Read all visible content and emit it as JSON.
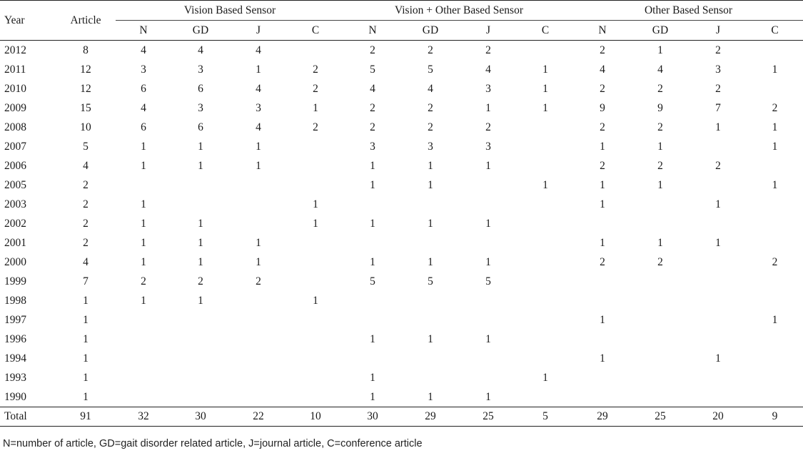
{
  "table": {
    "col_year": "Year",
    "col_article": "Article",
    "groups": [
      "Vision Based Sensor",
      "Vision + Other Based Sensor",
      "Other Based Sensor"
    ],
    "sub_columns": [
      "N",
      "GD",
      "J",
      "C"
    ],
    "rows": [
      [
        "2012",
        "8",
        "4",
        "4",
        "4",
        "",
        "2",
        "2",
        "2",
        "",
        "2",
        "1",
        "2",
        ""
      ],
      [
        "2011",
        "12",
        "3",
        "3",
        "1",
        "2",
        "5",
        "5",
        "4",
        "1",
        "4",
        "4",
        "3",
        "1"
      ],
      [
        "2010",
        "12",
        "6",
        "6",
        "4",
        "2",
        "4",
        "4",
        "3",
        "1",
        "2",
        "2",
        "2",
        ""
      ],
      [
        "2009",
        "15",
        "4",
        "3",
        "3",
        "1",
        "2",
        "2",
        "1",
        "1",
        "9",
        "9",
        "7",
        "2"
      ],
      [
        "2008",
        "10",
        "6",
        "6",
        "4",
        "2",
        "2",
        "2",
        "2",
        "",
        "2",
        "2",
        "1",
        "1"
      ],
      [
        "2007",
        "5",
        "1",
        "1",
        "1",
        "",
        "3",
        "3",
        "3",
        "",
        "1",
        "1",
        "",
        "1"
      ],
      [
        "2006",
        "4",
        "1",
        "1",
        "1",
        "",
        "1",
        "1",
        "1",
        "",
        "2",
        "2",
        "2",
        ""
      ],
      [
        "2005",
        "2",
        "",
        "",
        "",
        "",
        "1",
        "1",
        "",
        "1",
        "1",
        "1",
        "",
        "1"
      ],
      [
        "2003",
        "2",
        "1",
        "",
        "",
        "1",
        "",
        "",
        "",
        "",
        "1",
        "",
        "1",
        ""
      ],
      [
        "2002",
        "2",
        "1",
        "1",
        "",
        "1",
        "1",
        "1",
        "1",
        "",
        "",
        "",
        "",
        ""
      ],
      [
        "2001",
        "2",
        "1",
        "1",
        "1",
        "",
        "",
        "",
        "",
        "",
        "1",
        "1",
        "1",
        ""
      ],
      [
        "2000",
        "4",
        "1",
        "1",
        "1",
        "",
        "1",
        "1",
        "1",
        "",
        "2",
        "2",
        "",
        "2"
      ],
      [
        "1999",
        "7",
        "2",
        "2",
        "2",
        "",
        "5",
        "5",
        "5",
        "",
        "",
        "",
        "",
        ""
      ],
      [
        "1998",
        "1",
        "1",
        "1",
        "",
        "1",
        "",
        "",
        "",
        "",
        "",
        "",
        "",
        ""
      ],
      [
        "1997",
        "1",
        "",
        "",
        "",
        "",
        "",
        "",
        "",
        "",
        "1",
        "",
        "",
        "1"
      ],
      [
        "1996",
        "1",
        "",
        "",
        "",
        "",
        "1",
        "1",
        "1",
        "",
        "",
        "",
        "",
        ""
      ],
      [
        "1994",
        "1",
        "",
        "",
        "",
        "",
        "",
        "",
        "",
        "",
        "1",
        "",
        "1",
        ""
      ],
      [
        "1993",
        "1",
        "",
        "",
        "",
        "",
        "1",
        "",
        "",
        "1",
        "",
        "",
        "",
        ""
      ],
      [
        "1990",
        "1",
        "",
        "",
        "",
        "",
        "1",
        "1",
        "1",
        "",
        "",
        "",
        "",
        ""
      ]
    ],
    "total": [
      "Total",
      "91",
      "32",
      "30",
      "22",
      "10",
      "30",
      "29",
      "25",
      "5",
      "29",
      "25",
      "20",
      "9"
    ]
  },
  "footnote": "N=number of article, GD=gait disorder related article, J=journal article, C=conference article"
}
